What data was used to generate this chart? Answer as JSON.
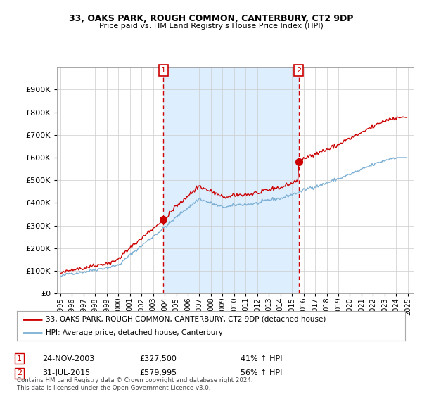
{
  "title1": "33, OAKS PARK, ROUGH COMMON, CANTERBURY, CT2 9DP",
  "title2": "Price paid vs. HM Land Registry's House Price Index (HPI)",
  "legend_line1": "33, OAKS PARK, ROUGH COMMON, CANTERBURY, CT2 9DP (detached house)",
  "legend_line2": "HPI: Average price, detached house, Canterbury",
  "purchase1_date": "24-NOV-2003",
  "purchase1_price": 327500,
  "purchase1_hpi_text": "41% ↑ HPI",
  "purchase1_year": 2003.9,
  "purchase2_date": "31-JUL-2015",
  "purchase2_price": 579995,
  "purchase2_hpi_text": "56% ↑ HPI",
  "purchase2_year": 2015.58,
  "footnote": "Contains HM Land Registry data © Crown copyright and database right 2024.\nThis data is licensed under the Open Government Licence v3.0.",
  "hpi_color": "#7bafd4",
  "price_color": "#cc0000",
  "shade_color": "#ddeeff",
  "ylim": [
    0,
    1000000
  ],
  "ytick_vals": [
    0,
    100000,
    200000,
    300000,
    400000,
    500000,
    600000,
    700000,
    800000,
    900000
  ],
  "xlim_start": 1994.7,
  "xlim_end": 2025.5,
  "background_color": "#ffffff",
  "grid_color": "#cccccc"
}
